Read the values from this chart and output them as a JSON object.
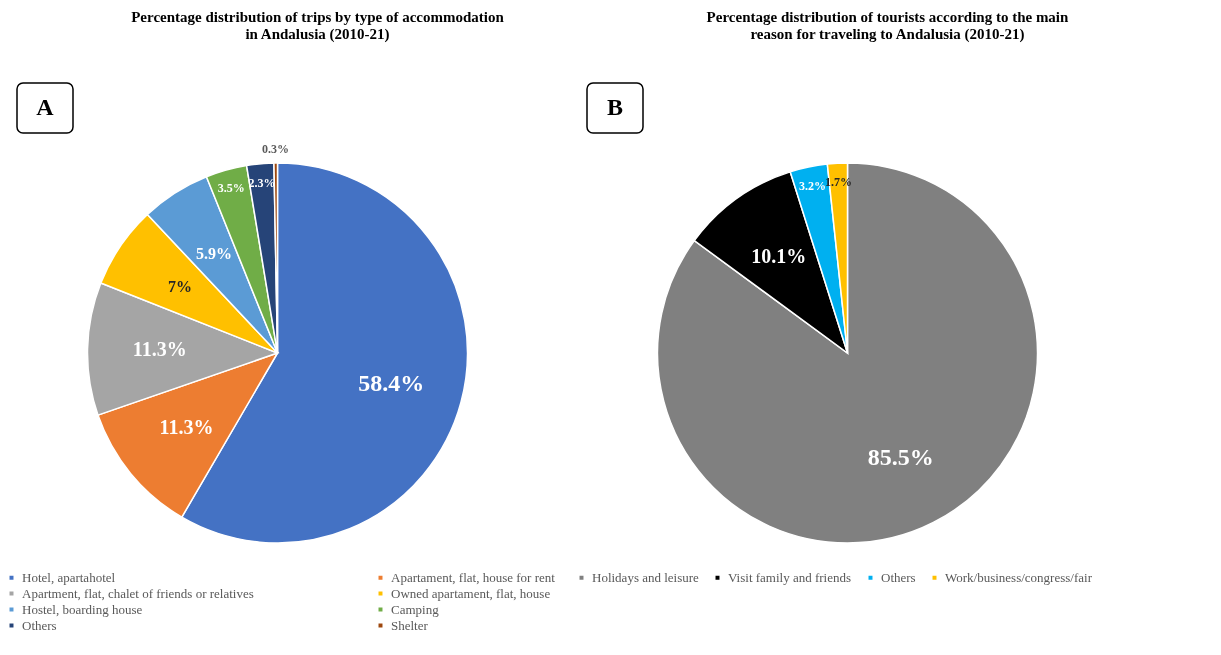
{
  "chart_data": [
    {
      "type": "pie",
      "title": "Percentage distribution of trips by type of accommodation in Andalusia (2010-21)",
      "annotations": [
        "A"
      ],
      "categories": [
        "Hotel, apartahotel",
        "Apartament, flat, house for rent",
        "Apartment, flat, chalet of friends or relatives",
        "Owned apartament, flat, house",
        "Hostel, boarding house",
        "Camping",
        "Others",
        "Shelter"
      ],
      "values": [
        58.4,
        11.3,
        11.3,
        7,
        5.9,
        3.5,
        2.3,
        0.3
      ],
      "value_labels": [
        "58.4%",
        "11.3%",
        "11.3%",
        "7%",
        "5.9%",
        "3.5%",
        "2.3%",
        "0.3%"
      ],
      "colors": [
        "#4472c4",
        "#ed7d31",
        "#a5a5a5",
        "#ffc000",
        "#5b9bd5",
        "#70ad47",
        "#264478",
        "#9e480e"
      ],
      "legend": "bottom"
    },
    {
      "type": "pie",
      "title": "Percentage distribution of tourists according to the main reason for traveling to Andalusia (2010-21)",
      "annotations": [
        "B"
      ],
      "categories": [
        "Holidays and leisure",
        "Visit family and friends",
        "Others",
        "Work/business/congress/fair"
      ],
      "values": [
        85.5,
        10.1,
        3.2,
        1.7
      ],
      "value_labels": [
        "85.5%",
        "10.1%",
        "3.2%",
        "1.7%"
      ],
      "colors": [
        "#808080",
        "#000000",
        "#00b0f0",
        "#ffc000"
      ],
      "legend": "bottom"
    }
  ]
}
